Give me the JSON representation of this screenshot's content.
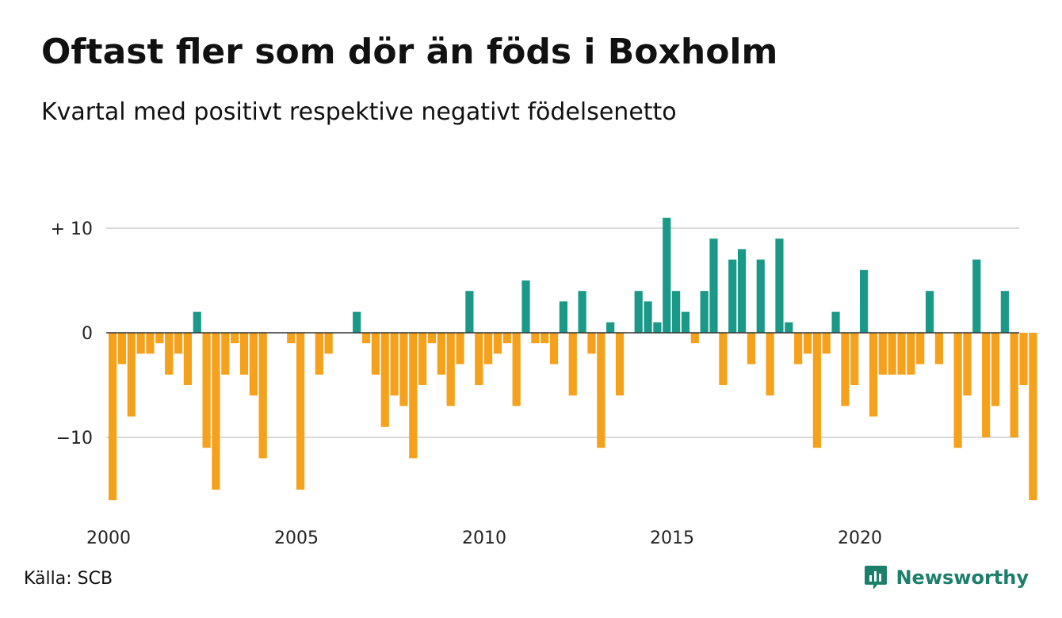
{
  "header": {
    "title": "Oftast fler som dör än föds i Boxholm",
    "subtitle": "Kvartal med positivt respektive negativt födelsenetto"
  },
  "footer": {
    "source": "Källa: SCB",
    "brand": "Newsworthy"
  },
  "colors": {
    "positive": "#1a9988",
    "negative": "#f5a11c",
    "grid": "#d9d9d9",
    "zero_line": "#333333",
    "brand": "#1b7f6a"
  },
  "icons": {
    "brand": "newsworthy-logo-icon"
  },
  "chart_data": {
    "type": "bar",
    "title": "Oftast fler som dör än föds i Boxholm",
    "subtitle": "Kvartal med positivt respektive negativt födelsenetto",
    "xlabel": "",
    "ylabel": "",
    "x_start_year": 2000,
    "quarters_per_year": 4,
    "ylim": [
      -16,
      11
    ],
    "y_ticks": [
      {
        "value": 10,
        "label": "+ 10"
      },
      {
        "value": 0,
        "label": "0"
      },
      {
        "value": -10,
        "label": "−10"
      }
    ],
    "x_ticks": [
      {
        "year": 2000,
        "label": "2000"
      },
      {
        "year": 2005,
        "label": "2005"
      },
      {
        "year": 2010,
        "label": "2010"
      },
      {
        "year": 2015,
        "label": "2015"
      },
      {
        "year": 2020,
        "label": "2020"
      }
    ],
    "grid": true,
    "legend": "none",
    "values": [
      -16,
      -3,
      -8,
      -2,
      -2,
      -1,
      -4,
      -2,
      -5,
      2,
      -11,
      -15,
      -4,
      -1,
      -4,
      -6,
      -12,
      0,
      0,
      -1,
      -15,
      0,
      -4,
      -2,
      0,
      0,
      2,
      -1,
      -4,
      -9,
      -6,
      -7,
      -12,
      -5,
      -1,
      -4,
      -7,
      -3,
      4,
      -5,
      -3,
      -2,
      -1,
      -7,
      5,
      -1,
      -1,
      -3,
      3,
      -6,
      4,
      -2,
      -11,
      1,
      -6,
      0,
      4,
      3,
      1,
      11,
      4,
      2,
      -1,
      4,
      9,
      -5,
      7,
      8,
      -3,
      7,
      -6,
      9,
      1,
      -3,
      -2,
      -11,
      -2,
      2,
      -7,
      -5,
      6,
      -8,
      -4,
      -4,
      -4,
      -4,
      -3,
      4,
      -3,
      0,
      -11,
      -6,
      7,
      -10,
      -7,
      4,
      -10,
      -5,
      -16
    ]
  }
}
